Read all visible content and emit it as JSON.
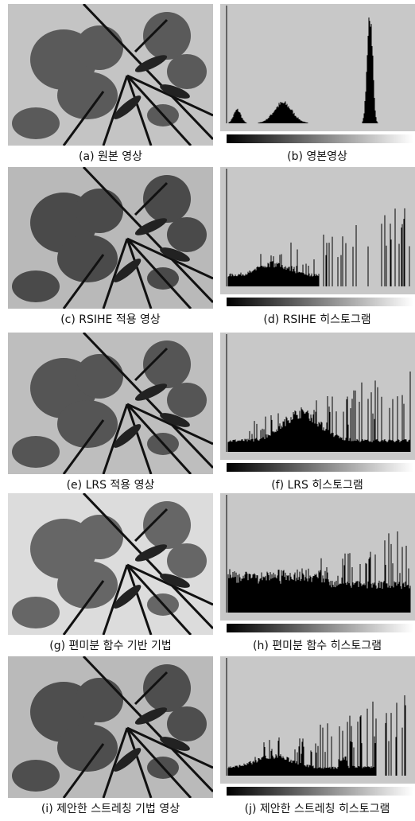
{
  "panels": [
    {
      "caption": "(a) 원본 영상"
    },
    {
      "caption": "(b) 영본영상"
    },
    {
      "caption": "(c) RSIHE 적용 영상"
    },
    {
      "caption": "(d) RSIHE 히스토그램"
    },
    {
      "caption": "(e) LRS 적용 영상"
    },
    {
      "caption": "(f) LRS 히스토그램"
    },
    {
      "caption": "(g) 편미분 함수 기반 기법"
    },
    {
      "caption": "(h) 편미분 함수 히스토그램"
    },
    {
      "caption": "(i) 제안한 스트레칭 기법 영상"
    },
    {
      "caption": "(j) 제안한 스트레칭 히스토그램"
    }
  ]
}
